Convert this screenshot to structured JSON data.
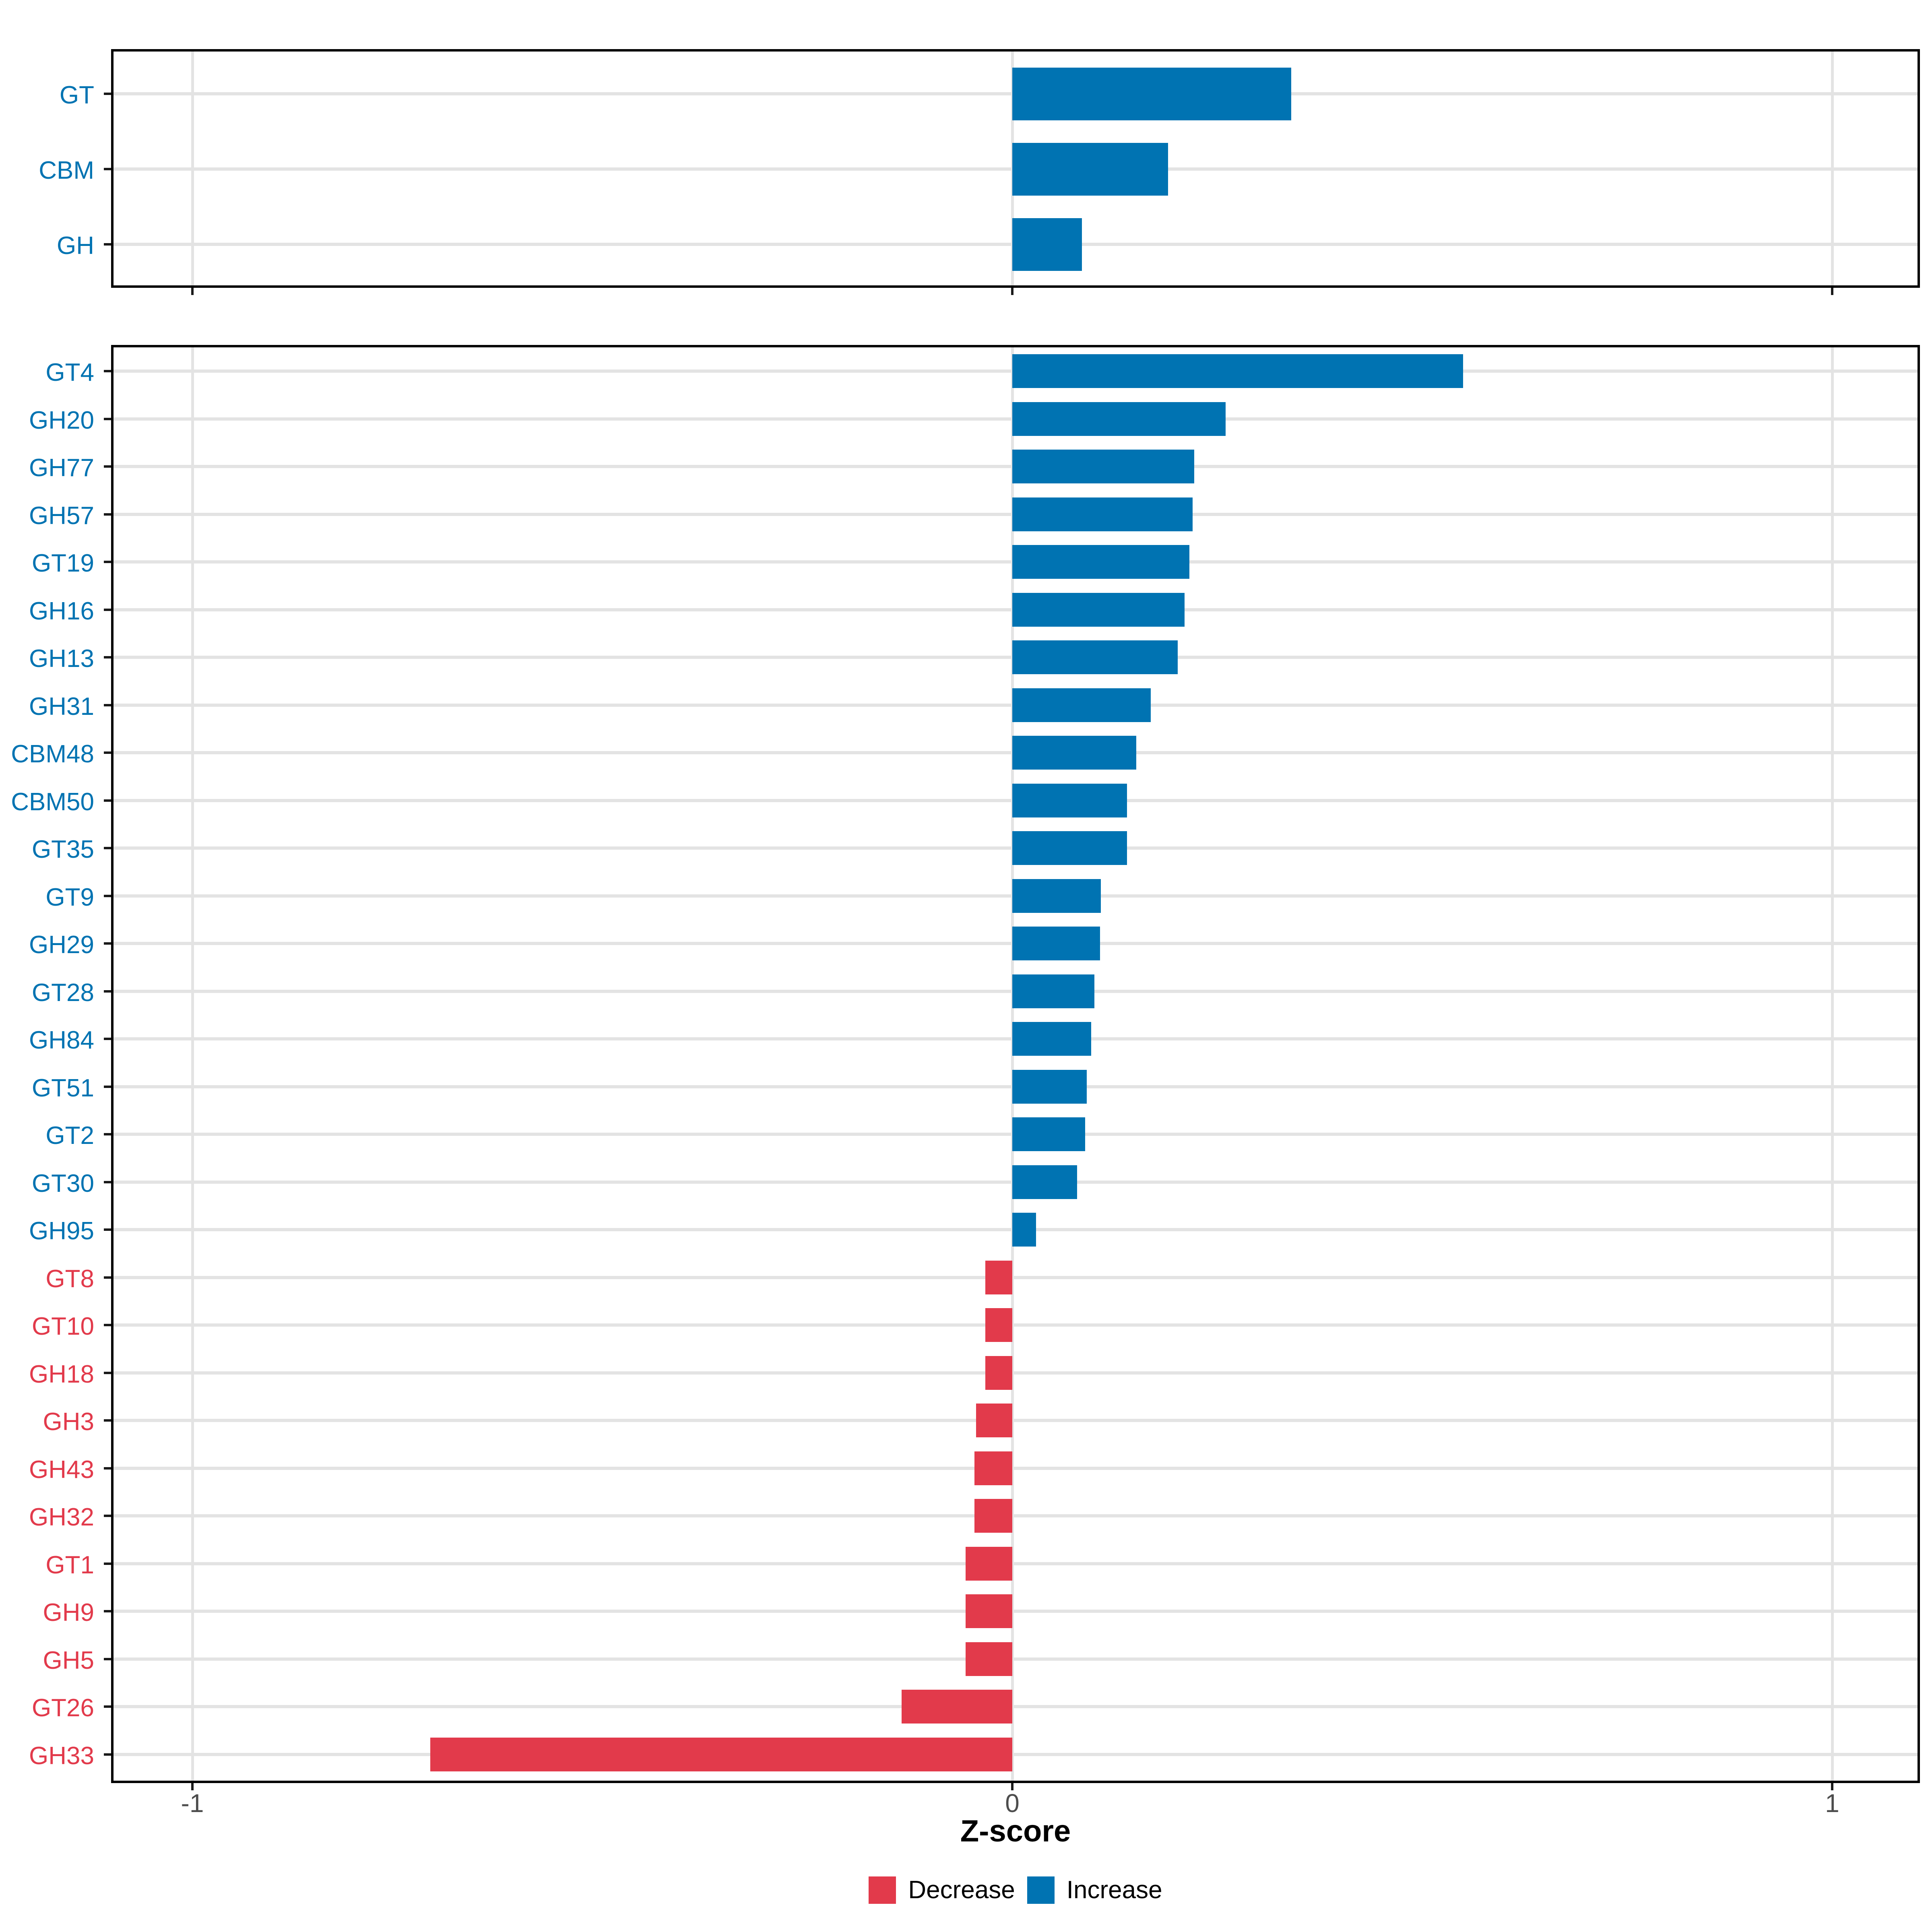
{
  "axis": {
    "label": "Z-score",
    "ticks": [
      -1,
      0,
      1
    ],
    "tick_labels": [
      "-1",
      "0",
      "1"
    ],
    "xlim": [
      -1.1,
      1.1
    ],
    "grid": "on"
  },
  "legend": {
    "position": "bottom",
    "items": [
      {
        "label": "Decrease",
        "color": "#e23a4b"
      },
      {
        "label": "Increase",
        "color": "#0073b2"
      }
    ]
  },
  "colors": {
    "increase": "#0073b2",
    "decrease": "#e23a4b",
    "grid": "#e3e3e3",
    "axis_text": "#4d4d4d",
    "border": "#000000",
    "background": "#ffffff"
  },
  "chart_data": [
    {
      "type": "bar",
      "orientation": "horizontal",
      "panel": "top-families",
      "categories": [
        "GT",
        "CBM",
        "GH"
      ],
      "values": [
        0.34,
        0.19,
        0.085
      ],
      "xlabel": "Z-score",
      "xlim": [
        -1.1,
        1.1
      ],
      "legend_entries": [
        "Increase"
      ],
      "note": "all bars increase (blue)"
    },
    {
      "type": "bar",
      "orientation": "horizontal",
      "panel": "bottom-subfamilies",
      "categories": [
        "GT4",
        "GH20",
        "GH77",
        "GH57",
        "GT19",
        "GH16",
        "GH13",
        "GH31",
        "CBM48",
        "CBM50",
        "GT35",
        "GT9",
        "GH29",
        "GT28",
        "GH84",
        "GT51",
        "GT2",
        "GT30",
        "GH95",
        "GT8",
        "GT10",
        "GH18",
        "GH3",
        "GH43",
        "GH32",
        "GT1",
        "GH9",
        "GH5",
        "GT26",
        "GH33"
      ],
      "values": [
        0.55,
        0.26,
        0.222,
        0.22,
        0.216,
        0.21,
        0.202,
        0.169,
        0.151,
        0.14,
        0.14,
        0.108,
        0.107,
        0.1,
        0.096,
        0.091,
        0.089,
        0.079,
        0.029,
        -0.033,
        -0.033,
        -0.033,
        -0.044,
        -0.046,
        -0.046,
        -0.057,
        -0.057,
        -0.057,
        -0.135,
        -0.71
      ],
      "xlabel": "Z-score",
      "xlim": [
        -1.1,
        1.1
      ],
      "legend_entries": [
        "Decrease",
        "Increase"
      ],
      "note": "positive bars blue (increase), negative bars red (decrease)"
    }
  ]
}
